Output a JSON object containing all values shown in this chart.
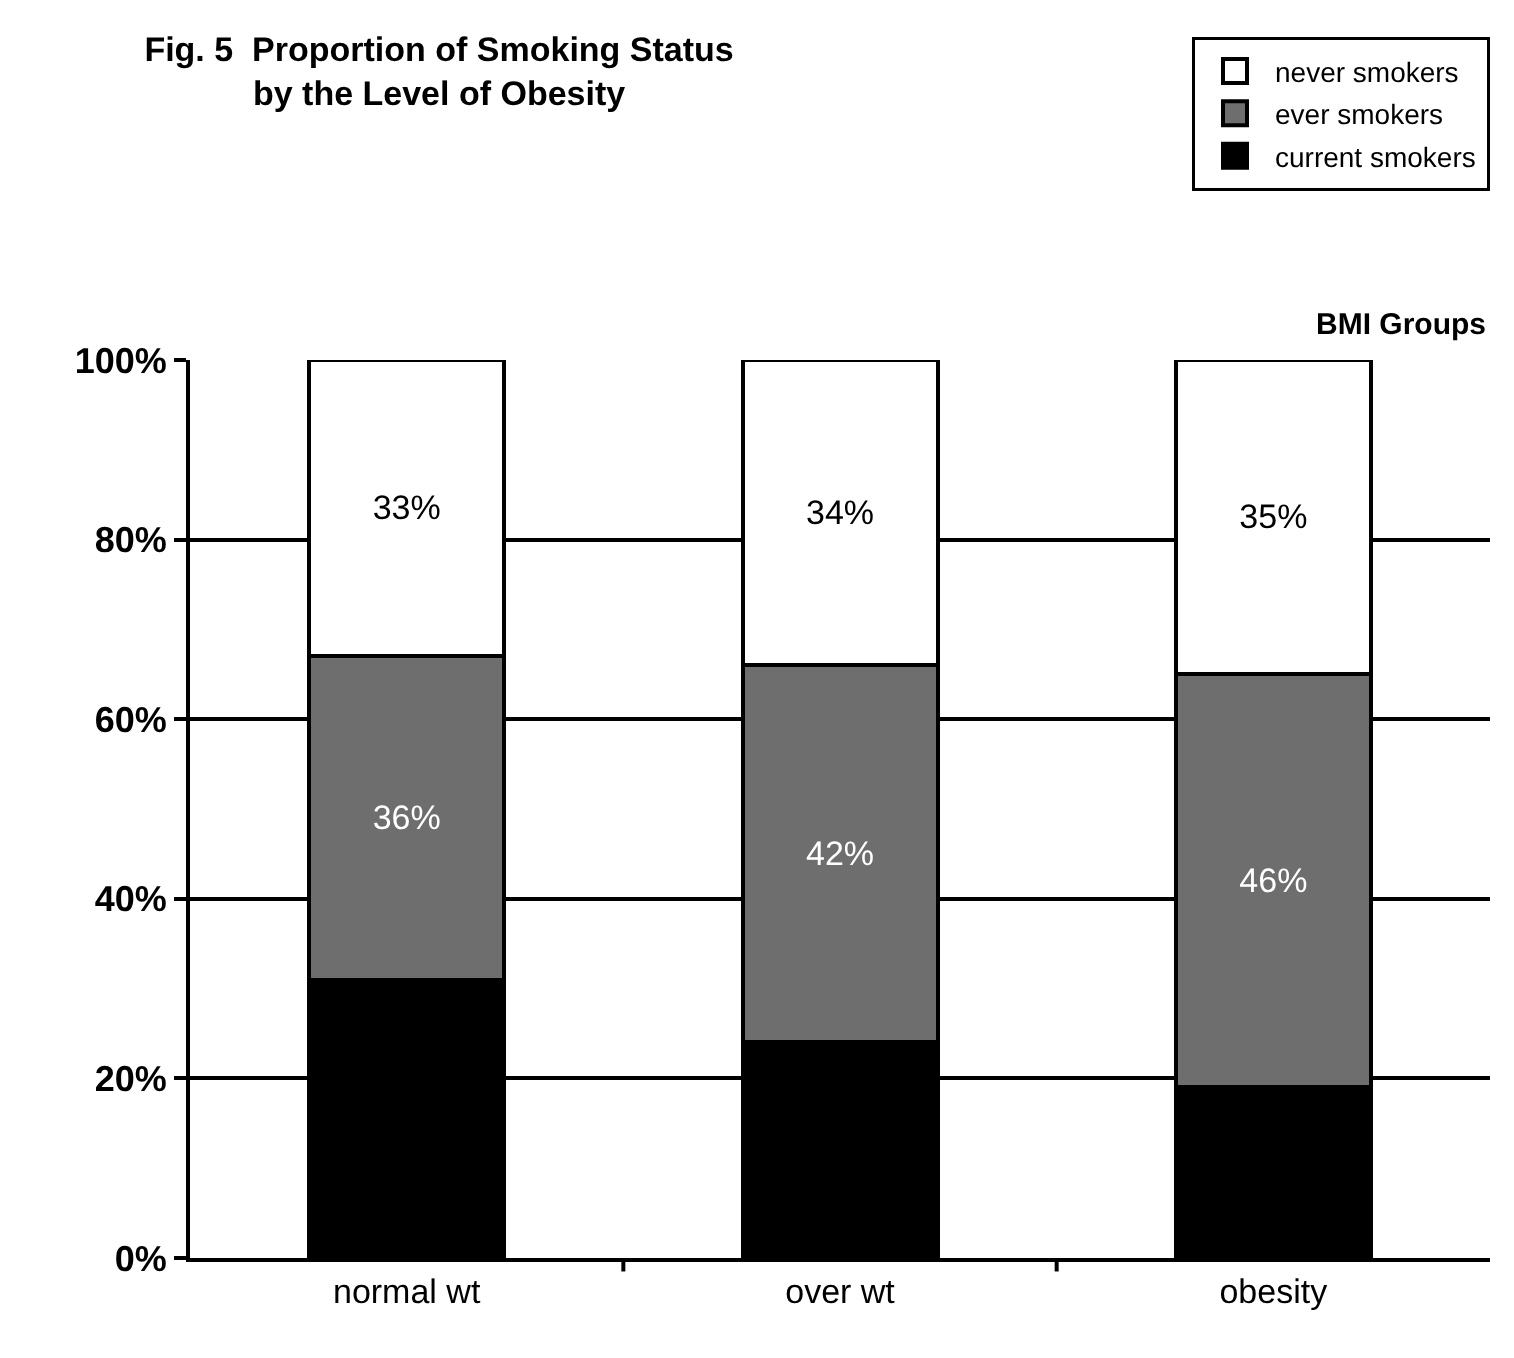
{
  "chart_data": {
    "type": "bar",
    "stacked": true,
    "title": "Fig. 5  Proportion of Smoking Status\nby the Level of Obesity",
    "xlabel": "BMI Groups",
    "categories": [
      "normal wt",
      "over wt",
      "obesity"
    ],
    "series": [
      {
        "name": "current smokers",
        "color": "#000000",
        "values": [
          31,
          24,
          19
        ]
      },
      {
        "name": "ever smokers",
        "color": "#6e6e6e",
        "values": [
          36,
          42,
          46
        ],
        "value_labels": [
          "36%",
          "42%",
          "46%"
        ]
      },
      {
        "name": "never smokers",
        "color": "#ffffff",
        "values": [
          33,
          34,
          35
        ],
        "value_labels": [
          "33%",
          "34%",
          "35%"
        ]
      }
    ],
    "ylim": [
      0,
      100
    ],
    "yticks": [
      {
        "value": 0,
        "label": "0%"
      },
      {
        "value": 20,
        "label": "20%"
      },
      {
        "value": 40,
        "label": "40%"
      },
      {
        "value": 60,
        "label": "60%"
      },
      {
        "value": 80,
        "label": "80%"
      },
      {
        "value": 100,
        "label": "100%"
      }
    ],
    "grid": "y",
    "legend": "top right"
  }
}
